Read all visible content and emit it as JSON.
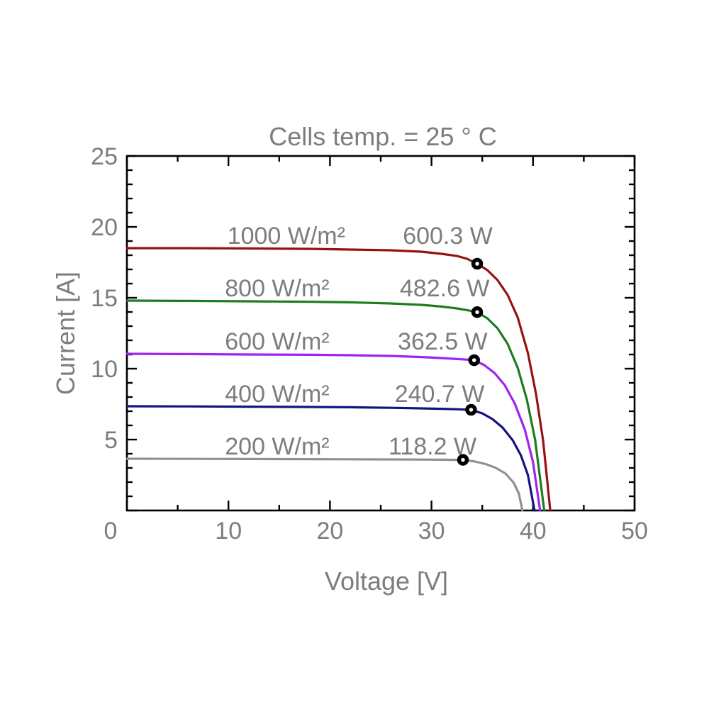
{
  "figure": {
    "background": "#ffffff",
    "axis_color": "#000000",
    "text_color": "#7d7d7d",
    "marker_edge_color": "#000000",
    "marker_face_color": "#ffffff"
  },
  "chart_data": {
    "type": "line",
    "title": "Cells temp. = 25 ° C",
    "xlabel": "Voltage [V]",
    "ylabel": "Current [A]",
    "xlim": [
      0,
      50
    ],
    "ylim": [
      0,
      25
    ],
    "x_major_ticks": [
      0,
      10,
      20,
      30,
      40,
      50
    ],
    "y_major_ticks": [
      0,
      5,
      10,
      15,
      20,
      25
    ],
    "x_minor_step": 5,
    "y_minor_step": 1,
    "grid": false,
    "legend_position": "inline-labels",
    "series": [
      {
        "irradiance": 1000,
        "label": "1000 W/m²",
        "power_label": "600.3 W",
        "color": "#961212",
        "isc": 18.5,
        "voc": 41.7,
        "mpp": {
          "voltage": 34.5,
          "current": 17.4,
          "power": 600.3
        },
        "irr_label_v": 15.7,
        "pow_label_v": 31.6,
        "points": [
          [
            0,
            18.5
          ],
          [
            6,
            18.5
          ],
          [
            12,
            18.48
          ],
          [
            18,
            18.45
          ],
          [
            22,
            18.4
          ],
          [
            26,
            18.35
          ],
          [
            29,
            18.25
          ],
          [
            31,
            18.1
          ],
          [
            32.5,
            17.95
          ],
          [
            33.5,
            17.75
          ],
          [
            34.5,
            17.4
          ],
          [
            35.5,
            16.95
          ],
          [
            36.5,
            16.25
          ],
          [
            37.5,
            15.2
          ],
          [
            38.5,
            13.6
          ],
          [
            39.5,
            11.1
          ],
          [
            40.3,
            8.2
          ],
          [
            41,
            4.9
          ],
          [
            41.7,
            0
          ]
        ]
      },
      {
        "irradiance": 800,
        "label": "800 W/m²",
        "power_label": "482.6 W",
        "color": "#1e7d1e",
        "isc": 14.8,
        "voc": 41.1,
        "mpp": {
          "voltage": 34.5,
          "current": 13.99,
          "power": 482.6
        },
        "irr_label_v": 14.8,
        "pow_label_v": 31.3,
        "points": [
          [
            0,
            14.8
          ],
          [
            6,
            14.78
          ],
          [
            12,
            14.75
          ],
          [
            18,
            14.72
          ],
          [
            22,
            14.68
          ],
          [
            26,
            14.6
          ],
          [
            29,
            14.5
          ],
          [
            31,
            14.38
          ],
          [
            32.5,
            14.25
          ],
          [
            33.5,
            14.13
          ],
          [
            34.5,
            13.99
          ],
          [
            35.5,
            13.55
          ],
          [
            36.5,
            12.85
          ],
          [
            37.5,
            11.75
          ],
          [
            38.5,
            10.05
          ],
          [
            39.4,
            7.8
          ],
          [
            40.2,
            5.0
          ],
          [
            41.1,
            0
          ]
        ]
      },
      {
        "irradiance": 600,
        "label": "600 W/m²",
        "power_label": "362.5 W",
        "color": "#a023f0",
        "isc": 11.05,
        "voc": 40.7,
        "mpp": {
          "voltage": 34.2,
          "current": 10.6,
          "power": 362.5
        },
        "irr_label_v": 14.8,
        "pow_label_v": 31.1,
        "points": [
          [
            0,
            11.05
          ],
          [
            6,
            11.03
          ],
          [
            12,
            11.0
          ],
          [
            18,
            10.98
          ],
          [
            22,
            10.95
          ],
          [
            26,
            10.9
          ],
          [
            29,
            10.82
          ],
          [
            31,
            10.75
          ],
          [
            32.5,
            10.68
          ],
          [
            33.5,
            10.64
          ],
          [
            34.2,
            10.6
          ],
          [
            35.2,
            10.25
          ],
          [
            36.2,
            9.7
          ],
          [
            37.2,
            8.85
          ],
          [
            38.2,
            7.55
          ],
          [
            39.2,
            5.7
          ],
          [
            40,
            3.4
          ],
          [
            40.7,
            0
          ]
        ]
      },
      {
        "irradiance": 400,
        "label": "400 W/m²",
        "power_label": "240.7 W",
        "color": "#14147d",
        "isc": 7.35,
        "voc": 40.15,
        "mpp": {
          "voltage": 33.9,
          "current": 7.1,
          "power": 240.7
        },
        "irr_label_v": 14.8,
        "pow_label_v": 30.8,
        "points": [
          [
            0,
            7.35
          ],
          [
            6,
            7.34
          ],
          [
            12,
            7.32
          ],
          [
            18,
            7.3
          ],
          [
            22,
            7.28
          ],
          [
            26,
            7.24
          ],
          [
            29,
            7.2
          ],
          [
            31,
            7.17
          ],
          [
            32.5,
            7.14
          ],
          [
            33.9,
            7.1
          ],
          [
            35,
            6.85
          ],
          [
            36,
            6.45
          ],
          [
            37,
            5.85
          ],
          [
            38,
            4.95
          ],
          [
            38.8,
            3.9
          ],
          [
            39.5,
            2.5
          ],
          [
            40.15,
            0
          ]
        ]
      },
      {
        "irradiance": 200,
        "label": "200 W/m²",
        "power_label": "118.2 W",
        "color": "#919191",
        "isc": 3.65,
        "voc": 38.95,
        "mpp": {
          "voltage": 33.1,
          "current": 3.57,
          "power": 118.2
        },
        "irr_label_v": 14.8,
        "pow_label_v": 30.1,
        "points": [
          [
            0,
            3.65
          ],
          [
            6,
            3.64
          ],
          [
            12,
            3.63
          ],
          [
            18,
            3.62
          ],
          [
            22,
            3.61
          ],
          [
            26,
            3.6
          ],
          [
            29,
            3.59
          ],
          [
            31,
            3.58
          ],
          [
            33.1,
            3.57
          ],
          [
            34.3,
            3.45
          ],
          [
            35.3,
            3.28
          ],
          [
            36.3,
            3.02
          ],
          [
            37.3,
            2.6
          ],
          [
            38.1,
            1.95
          ],
          [
            38.6,
            1.2
          ],
          [
            38.95,
            0
          ]
        ]
      }
    ]
  }
}
